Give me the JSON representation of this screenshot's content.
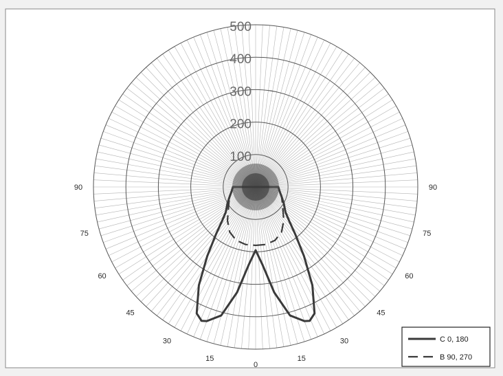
{
  "chart_data": {
    "type": "polar-line",
    "radial_axis": {
      "ticks": [
        100,
        200,
        300,
        400,
        500
      ],
      "range": [
        0,
        500
      ],
      "grid": true
    },
    "angle_ticks": {
      "left": [
        90,
        75,
        60,
        45,
        30,
        15
      ],
      "right": [
        90,
        75,
        60,
        45,
        30,
        15
      ],
      "bottom": [
        0
      ]
    },
    "angular_grid_step_deg": 2.5,
    "legend_position": "bottom-right",
    "series": [
      {
        "name": "C 0, 180",
        "style": "solid",
        "color": "#3a3a3a",
        "angles": [
          0,
          5,
          10,
          15,
          20,
          22,
          25,
          30,
          35,
          40,
          45,
          50,
          60,
          70,
          80,
          90
        ],
        "values": [
          195,
          240,
          330,
          410,
          440,
          445,
          430,
          350,
          260,
          190,
          145,
          120,
          100,
          85,
          75,
          70
        ]
      },
      {
        "name": "B 90, 270",
        "style": "dashed",
        "color": "#3a3a3a",
        "angles": [
          0,
          10,
          20,
          30,
          40,
          50,
          60,
          70,
          80,
          90
        ],
        "values": [
          180,
          180,
          175,
          160,
          135,
          110,
          95,
          85,
          75,
          70
        ]
      }
    ]
  },
  "colors": {
    "background": "#f1f1f1",
    "plot_background": "#ffffff",
    "grid_spoke": "#9a9a9a",
    "grid_circle": "#555555",
    "curve": "#3a3a3a"
  }
}
